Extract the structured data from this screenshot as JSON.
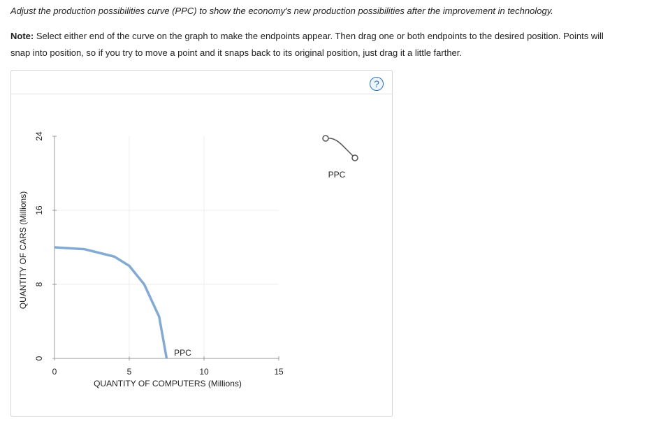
{
  "instructions": "Adjust the production possibilities curve (PPC) to show the economy's new production possibilities after the improvement in technology.",
  "note": {
    "label": "Note:",
    "line1": "Select either end of the curve on the graph to make the endpoints appear. Then drag one or both endpoints to the desired position. Points will",
    "line2": "snap into position, so if you try to move a point and it snaps back to its original position, just drag it a little farther."
  },
  "help_icon": "?",
  "chart_data": {
    "type": "line",
    "x_label": "QUANTITY OF COMPUTERS (Millions)",
    "y_label": "QUANTITY OF CARS (Millions)",
    "xlim": [
      0,
      15
    ],
    "ylim": [
      0,
      24
    ],
    "xticks": [
      0,
      5,
      10,
      15
    ],
    "yticks": [
      0,
      8,
      16,
      24
    ],
    "grid": true,
    "series": [
      {
        "name": "PPC",
        "color": "#82aad3",
        "x": [
          0,
          2,
          4,
          5,
          6,
          7,
          7.5
        ],
        "values": [
          12,
          11.8,
          11,
          10,
          8,
          4.5,
          0
        ]
      }
    ]
  }
}
